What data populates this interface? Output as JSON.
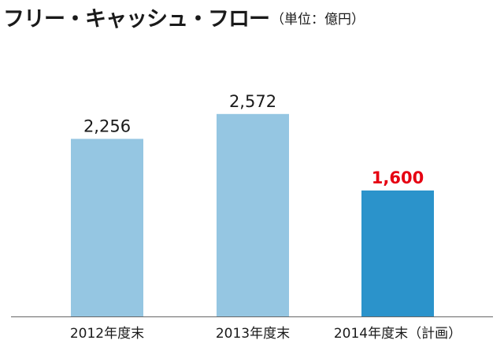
{
  "chart_data": {
    "type": "bar",
    "title": "フリー・キャッシュ・フロー",
    "unit": "（単位：億円）",
    "categories": [
      "2012年度末",
      "2013年度末",
      "2014年度末（計画）"
    ],
    "values": [
      2256,
      2572,
      1600
    ],
    "value_labels": [
      "2,256",
      "2,572",
      "1,600"
    ],
    "ylim": [
      0,
      3470
    ],
    "grid": false,
    "colors": {
      "actual_bar": "#95c6e2",
      "plan_bar": "#2b93cb",
      "plan_label": "#e60012",
      "actual_label": "#1a1a1a",
      "axis": "#666666"
    }
  }
}
